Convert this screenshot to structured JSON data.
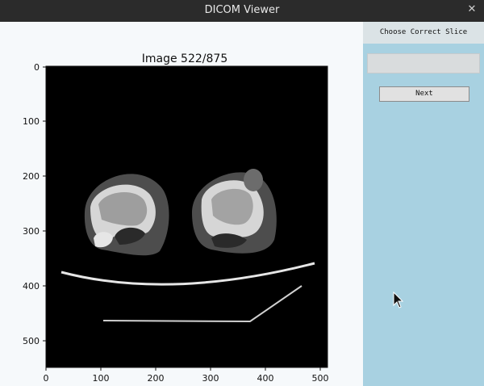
{
  "window": {
    "title": "DICOM Viewer",
    "close_glyph": "✕"
  },
  "plot": {
    "title": "Image 522/875",
    "y_ticks": [
      "0",
      "100",
      "200",
      "300",
      "400",
      "500"
    ],
    "x_ticks": [
      "0",
      "100",
      "200",
      "300",
      "400",
      "500"
    ]
  },
  "sidebar": {
    "header": "Choose Correct Slice",
    "input_value": "",
    "next_label": "Next"
  },
  "colors": {
    "sidebar": "#a8d1e1",
    "titlebar": "#2b2b2b"
  }
}
